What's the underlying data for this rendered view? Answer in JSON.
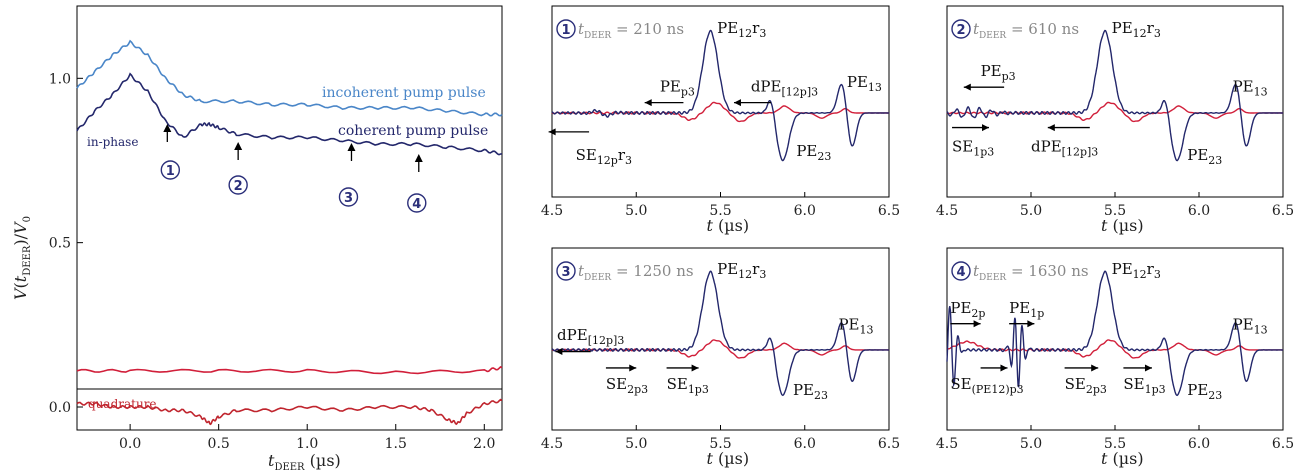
{
  "colors": {
    "blue_light": "#4a86c8",
    "blue_dark": "#23276b",
    "red": "#d11f3a",
    "red_dark": "#c0252e",
    "black": "#000000"
  },
  "chart_data": [
    {
      "type": "line",
      "xlabel": "t_DEER (µs)",
      "ylabel": "V(t_DEER)/V_0",
      "xlim": [
        -0.3,
        2.1
      ],
      "ylim": [
        -0.07,
        1.22
      ],
      "xticks": [
        "0.0",
        "0.5",
        "1.0",
        "1.5",
        "2.0"
      ],
      "yticks": [
        "0.0",
        "0.5",
        "1.0"
      ],
      "series": [
        {
          "name": "incoherent pump pulse",
          "x": [
            -0.3,
            -0.2,
            -0.1,
            0,
            0.1,
            0.2,
            0.3,
            0.4,
            0.6,
            0.8,
            1.0,
            1.2,
            1.4,
            1.6,
            1.8,
            2.0,
            2.1
          ],
          "y": [
            0.97,
            1.02,
            1.07,
            1.11,
            1.07,
            1.0,
            0.95,
            0.93,
            0.93,
            0.92,
            0.92,
            0.91,
            0.91,
            0.91,
            0.9,
            0.89,
            0.89
          ]
        },
        {
          "name": "coherent pump pulse",
          "x": [
            -0.3,
            -0.2,
            -0.1,
            0,
            0.1,
            0.2,
            0.3,
            0.4,
            0.45,
            0.5,
            0.6,
            0.8,
            1.0,
            1.2,
            1.4,
            1.6,
            1.8,
            2.0,
            2.1
          ],
          "y": [
            0.84,
            0.9,
            0.95,
            1.01,
            0.96,
            0.87,
            0.82,
            0.86,
            0.86,
            0.85,
            0.83,
            0.82,
            0.82,
            0.81,
            0.8,
            0.8,
            0.79,
            0.78,
            0.77
          ]
        },
        {
          "name": "quadrature",
          "x": [
            -0.3,
            -0.2,
            -0.1,
            0,
            0.1,
            0.2,
            0.3,
            0.4,
            0.45,
            0.5,
            0.6,
            0.8,
            1.0,
            1.2,
            1.4,
            1.6,
            1.7,
            1.8,
            1.85,
            1.9,
            2.0,
            2.1
          ],
          "y": [
            0.01,
            0.01,
            0.0,
            0.0,
            0.0,
            -0.01,
            -0.01,
            -0.03,
            -0.05,
            -0.03,
            -0.01,
            -0.01,
            0.0,
            -0.01,
            0.0,
            0.0,
            -0.01,
            -0.04,
            -0.05,
            -0.02,
            0.01,
            0.02
          ]
        },
        {
          "name": "",
          "x": [
            -0.3,
            0,
            0.5,
            1.0,
            1.5,
            2.0,
            2.1
          ],
          "y": [
            0.11,
            0.11,
            0.11,
            0.11,
            0.105,
            0.11,
            0.12
          ]
        }
      ],
      "labels": {
        "incoherent": "incoherent pump pulse",
        "coherent": "coherent pump pulse",
        "inphase": "in-phase",
        "quadrature": "quadrature"
      },
      "markers": [
        {
          "id": "1",
          "x": 0.21
        },
        {
          "id": "2",
          "x": 0.61
        },
        {
          "id": "3",
          "x": 1.25
        },
        {
          "id": "4",
          "x": 1.63
        }
      ]
    },
    {
      "type": "line",
      "panel": "1",
      "title_prefix": "t",
      "title_sub": "DEER",
      "title_value": "= 210 ns",
      "xlabel": "t (µs)",
      "xlim": [
        4.5,
        6.5
      ],
      "xticks": [
        "4.5",
        "5.0",
        "5.5",
        "6.0",
        "6.5"
      ],
      "labels": [
        "PE12r3",
        "PEp3",
        "dPE[12p]3",
        "PE13",
        "SE12pr3",
        "PE23"
      ]
    },
    {
      "type": "line",
      "panel": "2",
      "title_prefix": "t",
      "title_sub": "DEER",
      "title_value": "= 610 ns",
      "xlabel": "t (µs)",
      "xlim": [
        4.5,
        6.5
      ],
      "xticks": [
        "4.5",
        "5.0",
        "5.5",
        "6.0",
        "6.5"
      ],
      "labels": [
        "PE12r3",
        "PEp3",
        "SE1p3",
        "dPE[12p]3",
        "PE13",
        "PE23"
      ]
    },
    {
      "type": "line",
      "panel": "3",
      "title_prefix": "t",
      "title_sub": "DEER",
      "title_value": "= 1250 ns",
      "xlabel": "t (µs)",
      "xlim": [
        4.5,
        6.5
      ],
      "xticks": [
        "4.5",
        "5.0",
        "5.5",
        "6.0",
        "6.5"
      ],
      "labels": [
        "PE12r3",
        "dPE[12p]3",
        "SE2p3",
        "SE1p3",
        "PE13",
        "PE23"
      ]
    },
    {
      "type": "line",
      "panel": "4",
      "title_prefix": "t",
      "title_sub": "DEER",
      "title_value": "= 1630 ns",
      "xlabel": "t (µs)",
      "xlim": [
        4.5,
        6.5
      ],
      "xticks": [
        "4.5",
        "5.0",
        "5.5",
        "6.0",
        "6.5"
      ],
      "labels": [
        "PE12r3",
        "PE2p",
        "PE1p",
        "SE(PE12)p3",
        "SE2p3",
        "SE1p3",
        "PE13",
        "PE23"
      ]
    }
  ]
}
